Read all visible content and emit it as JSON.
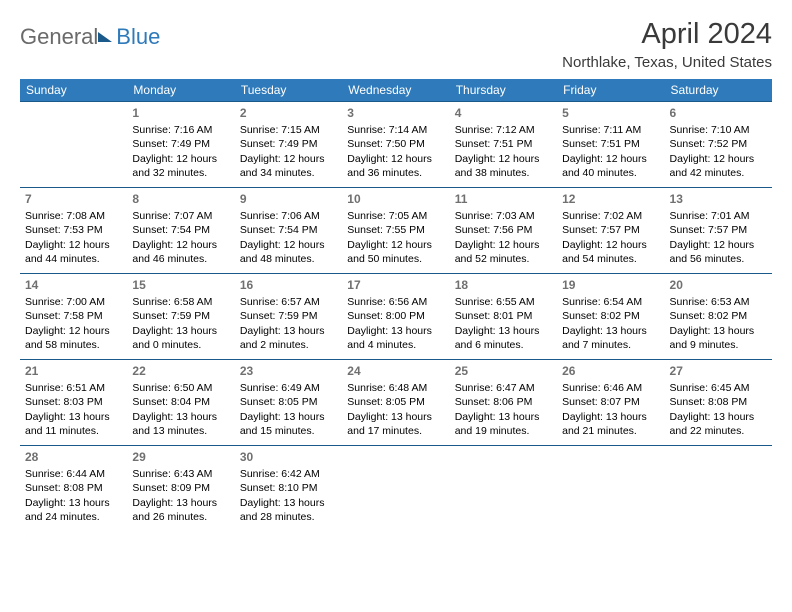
{
  "logo": {
    "part1": "General",
    "part2": "Blue"
  },
  "title": "April 2024",
  "location": "Northlake, Texas, United States",
  "columns": [
    "Sunday",
    "Monday",
    "Tuesday",
    "Wednesday",
    "Thursday",
    "Friday",
    "Saturday"
  ],
  "header_bg": "#2e7aba",
  "header_fg": "#ffffff",
  "rule_color": "#1a5a8a",
  "title_color": "#3a3a3a",
  "daynum_color": "#707070",
  "weeks": [
    [
      null,
      {
        "n": "1",
        "sunrise": "7:16 AM",
        "sunset": "7:49 PM",
        "daylight": "12 hours and 32 minutes."
      },
      {
        "n": "2",
        "sunrise": "7:15 AM",
        "sunset": "7:49 PM",
        "daylight": "12 hours and 34 minutes."
      },
      {
        "n": "3",
        "sunrise": "7:14 AM",
        "sunset": "7:50 PM",
        "daylight": "12 hours and 36 minutes."
      },
      {
        "n": "4",
        "sunrise": "7:12 AM",
        "sunset": "7:51 PM",
        "daylight": "12 hours and 38 minutes."
      },
      {
        "n": "5",
        "sunrise": "7:11 AM",
        "sunset": "7:51 PM",
        "daylight": "12 hours and 40 minutes."
      },
      {
        "n": "6",
        "sunrise": "7:10 AM",
        "sunset": "7:52 PM",
        "daylight": "12 hours and 42 minutes."
      }
    ],
    [
      {
        "n": "7",
        "sunrise": "7:08 AM",
        "sunset": "7:53 PM",
        "daylight": "12 hours and 44 minutes."
      },
      {
        "n": "8",
        "sunrise": "7:07 AM",
        "sunset": "7:54 PM",
        "daylight": "12 hours and 46 minutes."
      },
      {
        "n": "9",
        "sunrise": "7:06 AM",
        "sunset": "7:54 PM",
        "daylight": "12 hours and 48 minutes."
      },
      {
        "n": "10",
        "sunrise": "7:05 AM",
        "sunset": "7:55 PM",
        "daylight": "12 hours and 50 minutes."
      },
      {
        "n": "11",
        "sunrise": "7:03 AM",
        "sunset": "7:56 PM",
        "daylight": "12 hours and 52 minutes."
      },
      {
        "n": "12",
        "sunrise": "7:02 AM",
        "sunset": "7:57 PM",
        "daylight": "12 hours and 54 minutes."
      },
      {
        "n": "13",
        "sunrise": "7:01 AM",
        "sunset": "7:57 PM",
        "daylight": "12 hours and 56 minutes."
      }
    ],
    [
      {
        "n": "14",
        "sunrise": "7:00 AM",
        "sunset": "7:58 PM",
        "daylight": "12 hours and 58 minutes."
      },
      {
        "n": "15",
        "sunrise": "6:58 AM",
        "sunset": "7:59 PM",
        "daylight": "13 hours and 0 minutes."
      },
      {
        "n": "16",
        "sunrise": "6:57 AM",
        "sunset": "7:59 PM",
        "daylight": "13 hours and 2 minutes."
      },
      {
        "n": "17",
        "sunrise": "6:56 AM",
        "sunset": "8:00 PM",
        "daylight": "13 hours and 4 minutes."
      },
      {
        "n": "18",
        "sunrise": "6:55 AM",
        "sunset": "8:01 PM",
        "daylight": "13 hours and 6 minutes."
      },
      {
        "n": "19",
        "sunrise": "6:54 AM",
        "sunset": "8:02 PM",
        "daylight": "13 hours and 7 minutes."
      },
      {
        "n": "20",
        "sunrise": "6:53 AM",
        "sunset": "8:02 PM",
        "daylight": "13 hours and 9 minutes."
      }
    ],
    [
      {
        "n": "21",
        "sunrise": "6:51 AM",
        "sunset": "8:03 PM",
        "daylight": "13 hours and 11 minutes."
      },
      {
        "n": "22",
        "sunrise": "6:50 AM",
        "sunset": "8:04 PM",
        "daylight": "13 hours and 13 minutes."
      },
      {
        "n": "23",
        "sunrise": "6:49 AM",
        "sunset": "8:05 PM",
        "daylight": "13 hours and 15 minutes."
      },
      {
        "n": "24",
        "sunrise": "6:48 AM",
        "sunset": "8:05 PM",
        "daylight": "13 hours and 17 minutes."
      },
      {
        "n": "25",
        "sunrise": "6:47 AM",
        "sunset": "8:06 PM",
        "daylight": "13 hours and 19 minutes."
      },
      {
        "n": "26",
        "sunrise": "6:46 AM",
        "sunset": "8:07 PM",
        "daylight": "13 hours and 21 minutes."
      },
      {
        "n": "27",
        "sunrise": "6:45 AM",
        "sunset": "8:08 PM",
        "daylight": "13 hours and 22 minutes."
      }
    ],
    [
      {
        "n": "28",
        "sunrise": "6:44 AM",
        "sunset": "8:08 PM",
        "daylight": "13 hours and 24 minutes."
      },
      {
        "n": "29",
        "sunrise": "6:43 AM",
        "sunset": "8:09 PM",
        "daylight": "13 hours and 26 minutes."
      },
      {
        "n": "30",
        "sunrise": "6:42 AM",
        "sunset": "8:10 PM",
        "daylight": "13 hours and 28 minutes."
      },
      null,
      null,
      null,
      null
    ]
  ],
  "labels": {
    "sunrise": "Sunrise: ",
    "sunset": "Sunset: ",
    "daylight": "Daylight: "
  }
}
